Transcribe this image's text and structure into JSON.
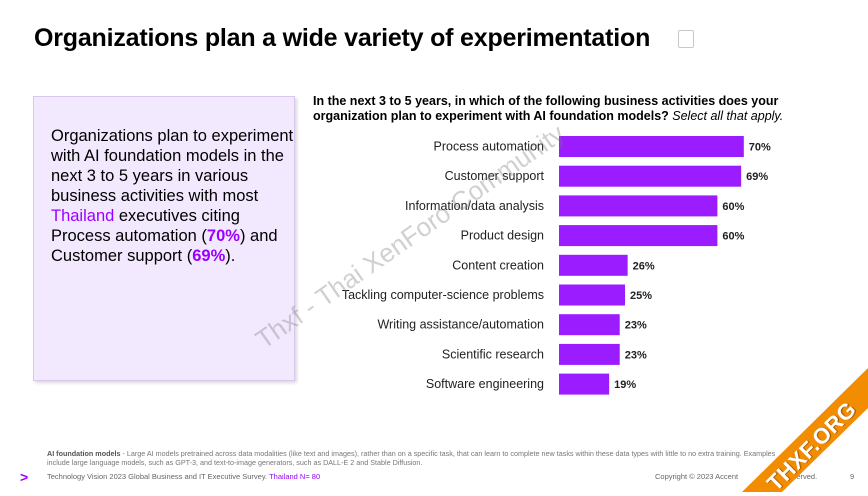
{
  "slide": {
    "title": "Organizations plan a wide variety of experimentation",
    "summary": {
      "part1": "Organizations plan to experiment with AI foundation models in the next 3 to 5 years in various business activities with most ",
      "country": "Thailand",
      "part2": " executives citing Process automation (",
      "pct1": "70%",
      "part3": ") and Customer support (",
      "pct2": "69%",
      "part4": ")."
    },
    "question": {
      "bold": "In the next 3 to 5 years, in which of the following business activities does your organization plan to experiment with AI foundation models?",
      "italic": " Select all that apply."
    },
    "footnote": {
      "term": "AI foundation models",
      "text": " - Large AI models pretrained across data modalities (like text and images), rather than on a specific task, that can learn to complete new tasks within these data types with little to no extra training. Examples include large language models, such as GPT-3, and text-to-image generators, such as DALL-E 2 and Stable Diffusion."
    },
    "source": {
      "brand_mark": ">",
      "text": "Technology Vision 2023 Global Business and IT Executive Survey. ",
      "sample": "Thailand N= 80"
    },
    "copyright": "Copyright © 2023 Accent",
    "copyright_tail": "s reserved.",
    "page_number": "9",
    "watermark": "Thxf - Thai XenForo Community",
    "ribbon": "THXF.ORG",
    "colors": {
      "accent": "#9900ff",
      "bar": "#9b1cff",
      "ribbon": "#f28c00"
    }
  },
  "chart_data": {
    "type": "bar",
    "orientation": "horizontal",
    "categories": [
      "Process automation",
      "Customer support",
      "Information/data analysis",
      "Product design",
      "Content creation",
      "Tackling computer-science problems",
      "Writing assistance/automation",
      "Scientific research",
      "Software engineering"
    ],
    "values": [
      70,
      69,
      60,
      60,
      26,
      25,
      23,
      23,
      19
    ],
    "value_labels": [
      "70%",
      "69%",
      "60%",
      "60%",
      "26%",
      "25%",
      "23%",
      "23%",
      "19%"
    ],
    "xlim": [
      0,
      100
    ],
    "grid": false,
    "legend": false
  }
}
